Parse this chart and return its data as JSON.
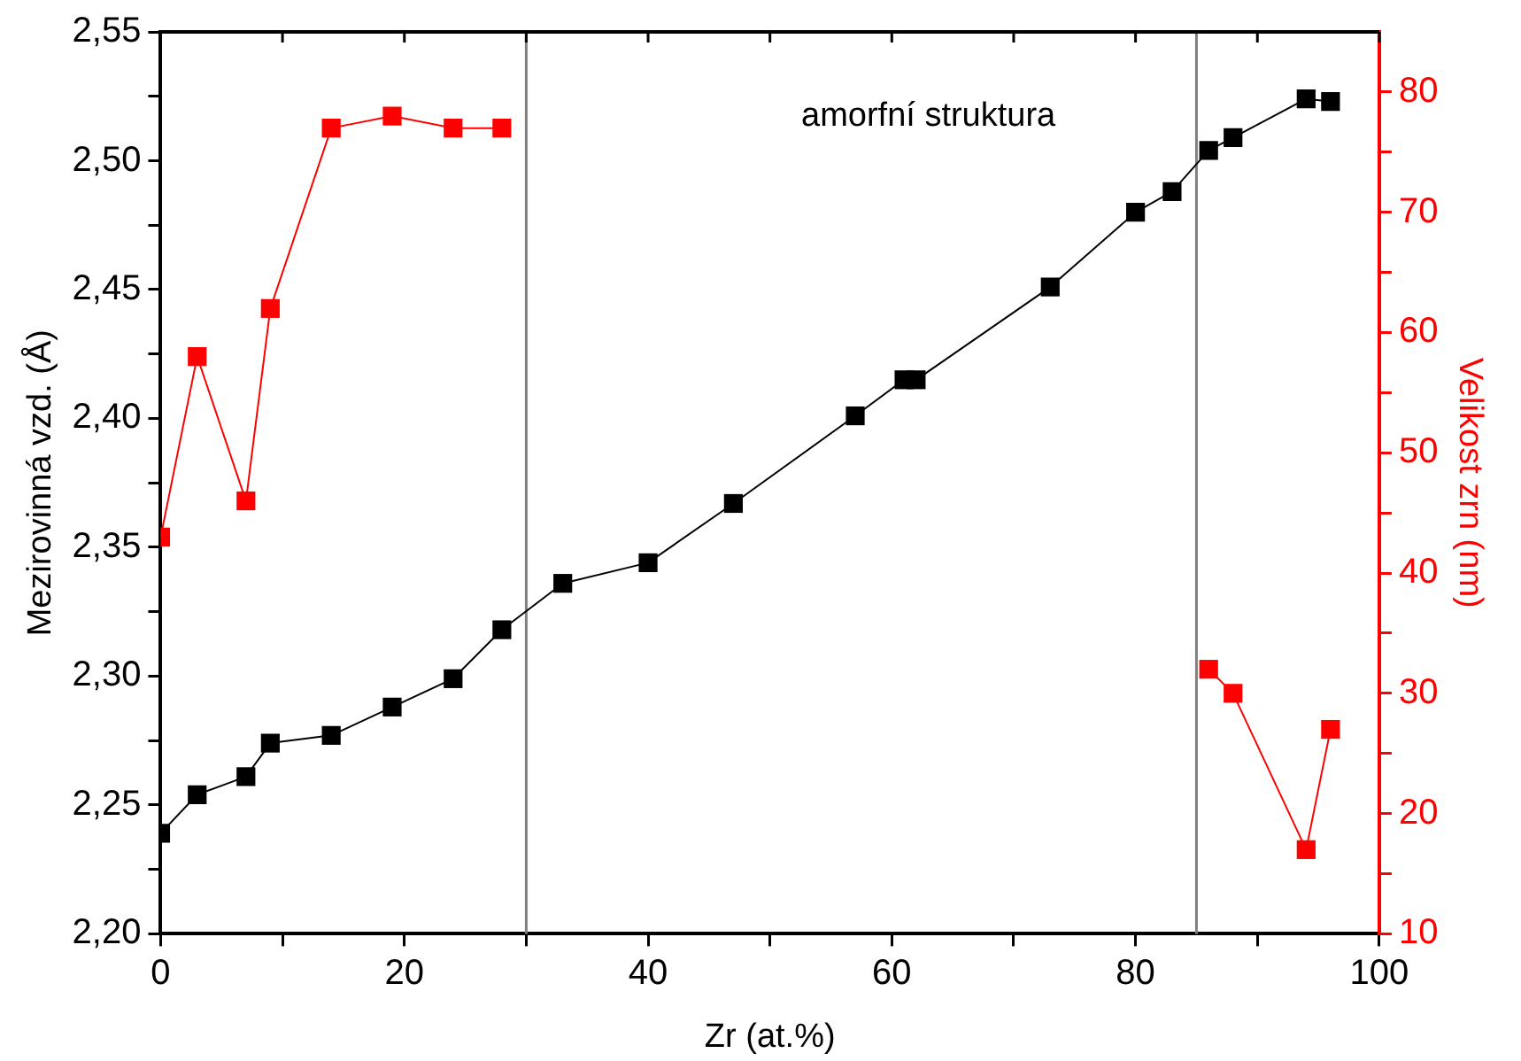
{
  "chart_data": {
    "type": "line",
    "xlabel": "Zr (at.%)",
    "ylabel": "Mezirovinná vzd. (Å)",
    "y2label": "Velikost zrn (nm)",
    "annotations": [
      "amorfní struktura"
    ],
    "xlim": [
      0,
      100
    ],
    "xticks": [
      0,
      {
        "value": 10,
        "label": null
      },
      20,
      {
        "value": 30,
        "label": null
      },
      40,
      {
        "value": 50,
        "label": null
      },
      60,
      {
        "value": 70,
        "label": null
      },
      80,
      {
        "value": 90,
        "label": null
      },
      100
    ],
    "ylim": [
      2.2,
      2.55
    ],
    "yticks": [
      {
        "value": 2.2,
        "label": "2,20"
      },
      {
        "value": 2.225,
        "label": null
      },
      {
        "value": 2.25,
        "label": "2,25"
      },
      {
        "value": 2.275,
        "label": null
      },
      {
        "value": 2.3,
        "label": "2,30"
      },
      {
        "value": 2.325,
        "label": null
      },
      {
        "value": 2.35,
        "label": "2,35"
      },
      {
        "value": 2.375,
        "label": null
      },
      {
        "value": 2.4,
        "label": "2,40"
      },
      {
        "value": 2.425,
        "label": null
      },
      {
        "value": 2.45,
        "label": "2,45"
      },
      {
        "value": 2.475,
        "label": null
      },
      {
        "value": 2.5,
        "label": "2,50"
      },
      {
        "value": 2.525,
        "label": null
      },
      {
        "value": 2.55,
        "label": "2,55"
      }
    ],
    "y2lim": [
      10,
      85
    ],
    "y2ticks": [
      10,
      {
        "value": 15,
        "label": null
      },
      20,
      {
        "value": 25,
        "label": null
      },
      30,
      {
        "value": 35,
        "label": null
      },
      40,
      {
        "value": 45,
        "label": null
      },
      50,
      {
        "value": 55,
        "label": null
      },
      60,
      {
        "value": 65,
        "label": null
      },
      70,
      {
        "value": 75,
        "label": null
      },
      80
    ],
    "marker": "square",
    "grid": false,
    "legend": false,
    "ref_lines": [
      {
        "axis": "x",
        "value": 30,
        "color": "#808080"
      },
      {
        "axis": "x",
        "value": 85,
        "color": "#808080"
      }
    ],
    "series": [
      {
        "color": "#000000",
        "x": [
          0,
          3,
          7,
          9,
          14,
          19,
          24,
          28,
          33,
          40,
          47,
          57,
          61,
          62,
          73,
          80,
          83,
          86,
          88,
          94,
          96
        ],
        "values": [
          2.239,
          2.254,
          2.261,
          2.274,
          2.277,
          2.288,
          2.299,
          2.318,
          2.336,
          2.344,
          2.367,
          2.401,
          2.415,
          2.415,
          2.451,
          2.48,
          2.488,
          2.504,
          2.509,
          2.524,
          2.523
        ]
      },
      {
        "color": "#ff0000",
        "axis": "y2",
        "x": [
          0,
          3,
          7,
          9,
          14,
          19,
          24,
          28,
          null,
          86,
          88,
          94,
          96
        ],
        "values": [
          43,
          58,
          46,
          62,
          77,
          78,
          77,
          77,
          null,
          32,
          30,
          17,
          27
        ]
      }
    ]
  }
}
